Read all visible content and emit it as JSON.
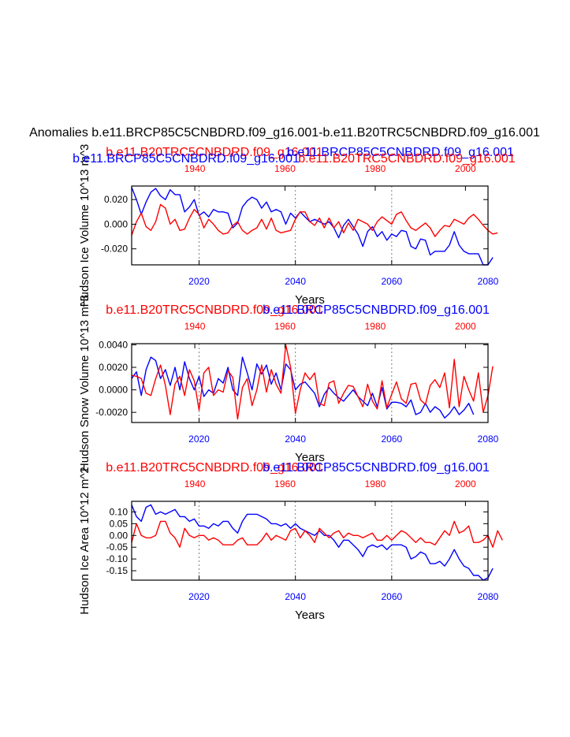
{
  "main_title": "Anomalies b.e11.BRCP85C5CNBDRD.f09_g16.001-b.e11.B20TRC5CNBDRD.f09_g16.001",
  "colors": {
    "blue": "#0000ff",
    "red": "#ff0000",
    "black": "#000000",
    "grid": "#808080"
  },
  "chart_data": [
    {
      "type": "line",
      "ylabel": "Hudson Ice Volume 10^13 m^3",
      "xlabel": "Years",
      "top_labels": [
        {
          "text": "b.e11.B20TRC5CNBDRD.f09_g16.001",
          "color": "#ff0000"
        },
        {
          "text": "b.e11.BRCP85C5CNBDRD.f09_g16.001",
          "color": "#0000ff"
        },
        {
          "text": "b.e11.BRCP85C5CNBDRD.f09_g16.001",
          "color": "#0000ff"
        },
        {
          "text": "b.e11.B20TRC5CNBDRD.f09_g16.001",
          "color": "#ff0000"
        }
      ],
      "x_bottom": {
        "range": [
          2006,
          2080
        ],
        "ticks": [
          2020,
          2040,
          2060,
          2080
        ],
        "color": "#0000ff"
      },
      "x_top": {
        "range": [
          1926,
          2005
        ],
        "ticks": [
          1940,
          1960,
          1980,
          2000
        ],
        "color": "#ff0000"
      },
      "ylim": [
        -0.033,
        0.031
      ],
      "yticks": [
        -0.02,
        0.0,
        0.02
      ],
      "ytick_labels": [
        "-0.020",
        "0.000",
        "0.020"
      ],
      "grid_x": [
        2020,
        2040,
        2060
      ],
      "series": [
        {
          "name": "b.e11.BRCP85C5CNBDRD.f09_g16.001",
          "color": "#0000ff",
          "x_start": 2006,
          "values": [
            0.03,
            0.02,
            0.008,
            0.018,
            0.026,
            0.029,
            0.023,
            0.02,
            0.028,
            0.024,
            0.024,
            0.01,
            0.014,
            0.02,
            0.007,
            0.01,
            0.006,
            0.012,
            0.01,
            0.01,
            0.009,
            -0.003,
            0.001,
            0.014,
            0.019,
            0.022,
            0.02,
            0.013,
            0.018,
            0.01,
            0.012,
            0.01,
            0.0,
            0.009,
            0.005,
            0.01,
            0.006,
            0.002,
            0.004,
            0.002,
            0.0,
            0.002,
            -0.003,
            -0.011,
            -0.001,
            0.004,
            -0.002,
            -0.008,
            -0.018,
            -0.006,
            -0.002,
            -0.01,
            -0.006,
            -0.013,
            -0.008,
            -0.01,
            -0.005,
            -0.006,
            -0.018,
            -0.02,
            -0.012,
            -0.013,
            -0.025,
            -0.022,
            -0.022,
            -0.022,
            -0.017,
            -0.006,
            -0.017,
            -0.022,
            -0.024,
            -0.024,
            -0.024,
            -0.033,
            -0.033,
            -0.027
          ]
        },
        {
          "name": "b.e11.B20TRC5CNBDRD.f09_g16.001",
          "color": "#ff0000",
          "x_start": 2006,
          "values": [
            -0.009,
            0.002,
            0.009,
            -0.002,
            -0.005,
            0.002,
            0.016,
            0.013,
            0.0,
            0.004,
            -0.005,
            -0.004,
            0.005,
            0.012,
            0.008,
            -0.003,
            0.004,
            0.0,
            -0.005,
            -0.008,
            -0.007,
            -0.001,
            0.002,
            -0.005,
            -0.008,
            -0.005,
            -0.003,
            0.004,
            -0.004,
            0.005,
            -0.005,
            -0.007,
            -0.006,
            -0.005,
            0.004,
            0.01,
            0.01,
            0.002,
            -0.001,
            0.005,
            -0.003,
            0.005,
            -0.003,
            0.002,
            -0.007,
            0.001,
            -0.005,
            0.004,
            0.002,
            0.0,
            -0.005,
            0.002,
            0.006,
            0.003,
            0.0,
            0.008,
            0.01,
            0.003,
            -0.003,
            -0.005,
            -0.002,
            0.001,
            -0.003,
            -0.01,
            -0.005,
            -0.001,
            -0.002,
            0.004,
            0.002,
            0.0,
            0.005,
            0.008,
            0.004,
            -0.001,
            -0.005,
            -0.008,
            -0.007
          ]
        }
      ]
    },
    {
      "type": "line",
      "ylabel": "Hudson Snow Volume 10^13 m^3",
      "xlabel": "Years",
      "top_labels": [
        {
          "text": "b.e11.B20TRC5CNBDRD.f09_g16.001",
          "color": "#ff0000"
        },
        {
          "text": "b.e11.BRCP85C5CNBDRD.f09_g16.001",
          "color": "#0000ff"
        }
      ],
      "x_bottom": {
        "range": [
          2006,
          2080
        ],
        "ticks": [
          2020,
          2040,
          2060,
          2080
        ],
        "color": "#0000ff"
      },
      "x_top": {
        "range": [
          1926,
          2005
        ],
        "ticks": [
          1940,
          1960,
          1980,
          2000
        ],
        "color": "#ff0000"
      },
      "ylim": [
        -0.0029,
        0.0041
      ],
      "yticks": [
        -0.002,
        0.0,
        0.002,
        0.004
      ],
      "ytick_labels": [
        "-0.0020",
        "0.0000",
        "0.0020",
        "0.0040"
      ],
      "grid_x": [
        2020,
        2040,
        2060
      ],
      "series": [
        {
          "name": "b.e11.BRCP85C5CNBDRD.f09_g16.001",
          "color": "#0000ff",
          "x_start": 2006,
          "values": [
            0.001,
            0.0016,
            -0.0005,
            0.0018,
            0.0029,
            0.0026,
            0.001,
            0.0018,
            0.0004,
            0.002,
            0.0,
            0.0025,
            0.001,
            0.0,
            0.0012,
            -0.0006,
            0.0,
            -0.0003,
            0.001,
            0.0006,
            0.002,
            0.0,
            -0.0005,
            0.0029,
            0.0015,
            0.0,
            0.0023,
            0.0014,
            0.0022,
            0.0005,
            0.0015,
            0.0,
            0.0023,
            0.0018,
            0.0,
            0.0005,
            0.0007,
            0.0002,
            -0.0003,
            -0.0015,
            -0.0004,
            0.0002,
            -0.0003,
            -0.0007,
            -0.001,
            -0.0005,
            0.0,
            -0.0006,
            -0.001,
            -0.0014,
            -0.0003,
            -0.0015,
            0.0002,
            -0.0017,
            -0.0011,
            -0.0011,
            -0.0012,
            -0.0015,
            -0.0009,
            -0.0022,
            -0.002,
            -0.0012,
            -0.002,
            -0.0015,
            -0.0018,
            -0.0025,
            -0.0021,
            -0.0015,
            -0.0022,
            -0.0018,
            -0.0012,
            -0.0022
          ]
        },
        {
          "name": "b.e11.B20TRC5CNBDRD.f09_g16.001",
          "color": "#ff0000",
          "x_start": 2006,
          "values": [
            0.0013,
            0.0012,
            0.001,
            -0.0003,
            -0.0005,
            0.001,
            0.0022,
            0.0004,
            -0.0022,
            0.0005,
            0.0012,
            -0.0005,
            0.0018,
            0.0008,
            -0.0018,
            0.0015,
            0.002,
            -0.0005,
            0.0,
            -0.0002,
            0.0017,
            0.0011,
            -0.0026,
            0.0002,
            0.001,
            -0.0014,
            0.0,
            0.0022,
            -0.0002,
            0.0018,
            0.0005,
            -0.0003,
            0.004,
            0.002,
            -0.0021,
            0.0,
            0.0015,
            0.0009,
            0.0015,
            -0.0012,
            -0.0014,
            0.0006,
            0.0008,
            -0.0012,
            -0.0003,
            0.0004,
            0.0003,
            -0.0006,
            -0.0015,
            0.0005,
            -0.001,
            -0.0017,
            0.0008,
            -0.0016,
            -0.0004,
            0.0007,
            -0.0008,
            -0.0012,
            0.0005,
            0.0006,
            -0.0009,
            -0.0013,
            0.0004,
            0.0009,
            0.0002,
            0.0015,
            -0.0016,
            0.0027,
            -0.0015,
            0.0012,
            0.0,
            -0.001,
            0.0015,
            -0.002,
            -0.0005,
            0.0021
          ]
        }
      ]
    },
    {
      "type": "line",
      "ylabel": "Hudson Ice Area 10^12 m^2",
      "xlabel": "Years",
      "top_labels": [
        {
          "text": "b.e11.B20TRC5CNBDRD.f09_g16.001",
          "color": "#ff0000"
        },
        {
          "text": "b.e11.BRCP85C5CNBDRD.f09_g16.001",
          "color": "#0000ff"
        }
      ],
      "x_bottom": {
        "range": [
          2006,
          2080
        ],
        "ticks": [
          2020,
          2040,
          2060,
          2080
        ],
        "color": "#0000ff"
      },
      "x_top": {
        "range": [
          1926,
          2005
        ],
        "ticks": [
          1940,
          1960,
          1980,
          2000
        ],
        "color": "#ff0000"
      },
      "ylim": [
        -0.19,
        0.145
      ],
      "yticks": [
        -0.15,
        -0.1,
        -0.05,
        0.0,
        0.05,
        0.1
      ],
      "ytick_labels": [
        "-0.15",
        "-0.10",
        "-0.05",
        "0.00",
        "0.05",
        "0.10"
      ],
      "grid_x": [
        2020,
        2040,
        2060
      ],
      "series": [
        {
          "name": "b.e11.BRCP85C5CNBDRD.f09_g16.001",
          "color": "#0000ff",
          "x_start": 2006,
          "values": [
            0.13,
            0.08,
            0.06,
            0.12,
            0.13,
            0.09,
            0.1,
            0.09,
            0.1,
            0.11,
            0.08,
            0.08,
            0.06,
            0.07,
            0.04,
            0.04,
            0.03,
            0.05,
            0.04,
            0.06,
            0.06,
            0.03,
            0.01,
            0.06,
            0.09,
            0.09,
            0.09,
            0.08,
            0.07,
            0.05,
            0.05,
            0.04,
            0.05,
            0.03,
            0.05,
            0.03,
            0.02,
            0.01,
            0.0,
            0.02,
            0.0,
            0.0,
            -0.02,
            -0.05,
            -0.02,
            -0.02,
            -0.04,
            -0.06,
            -0.09,
            -0.05,
            -0.04,
            -0.05,
            -0.04,
            -0.06,
            -0.04,
            -0.04,
            -0.04,
            -0.05,
            -0.1,
            -0.09,
            -0.07,
            -0.08,
            -0.12,
            -0.12,
            -0.11,
            -0.13,
            -0.1,
            -0.06,
            -0.1,
            -0.13,
            -0.14,
            -0.17,
            -0.17,
            -0.19,
            -0.18,
            -0.14
          ]
        },
        {
          "name": "b.e11.B20TRC5CNBDRD.f09_g16.001",
          "color": "#ff0000",
          "x_start": 2006,
          "values": [
            -0.03,
            0.05,
            0.0,
            -0.01,
            -0.01,
            0.0,
            0.06,
            0.06,
            0.01,
            -0.01,
            -0.05,
            0.03,
            0.0,
            -0.01,
            0.0,
            0.0,
            -0.02,
            -0.01,
            -0.02,
            -0.04,
            -0.04,
            -0.04,
            -0.02,
            -0.01,
            -0.04,
            -0.04,
            -0.04,
            -0.02,
            0.01,
            -0.02,
            0.0,
            -0.01,
            -0.02,
            0.02,
            0.03,
            -0.01,
            0.02,
            0.0,
            -0.03,
            0.03,
            0.01,
            -0.01,
            0.01,
            0.02,
            -0.01,
            0.01,
            0.0,
            0.0,
            -0.01,
            0.0,
            0.01,
            -0.02,
            -0.02,
            0.0,
            -0.02,
            0.0,
            0.02,
            0.01,
            -0.01,
            -0.03,
            -0.01,
            -0.03,
            -0.03,
            -0.04,
            -0.01,
            0.02,
            0.0,
            0.06,
            0.01,
            0.02,
            0.04,
            -0.03,
            -0.03,
            -0.02,
            0.0,
            -0.05,
            0.02,
            -0.02
          ]
        }
      ]
    }
  ]
}
